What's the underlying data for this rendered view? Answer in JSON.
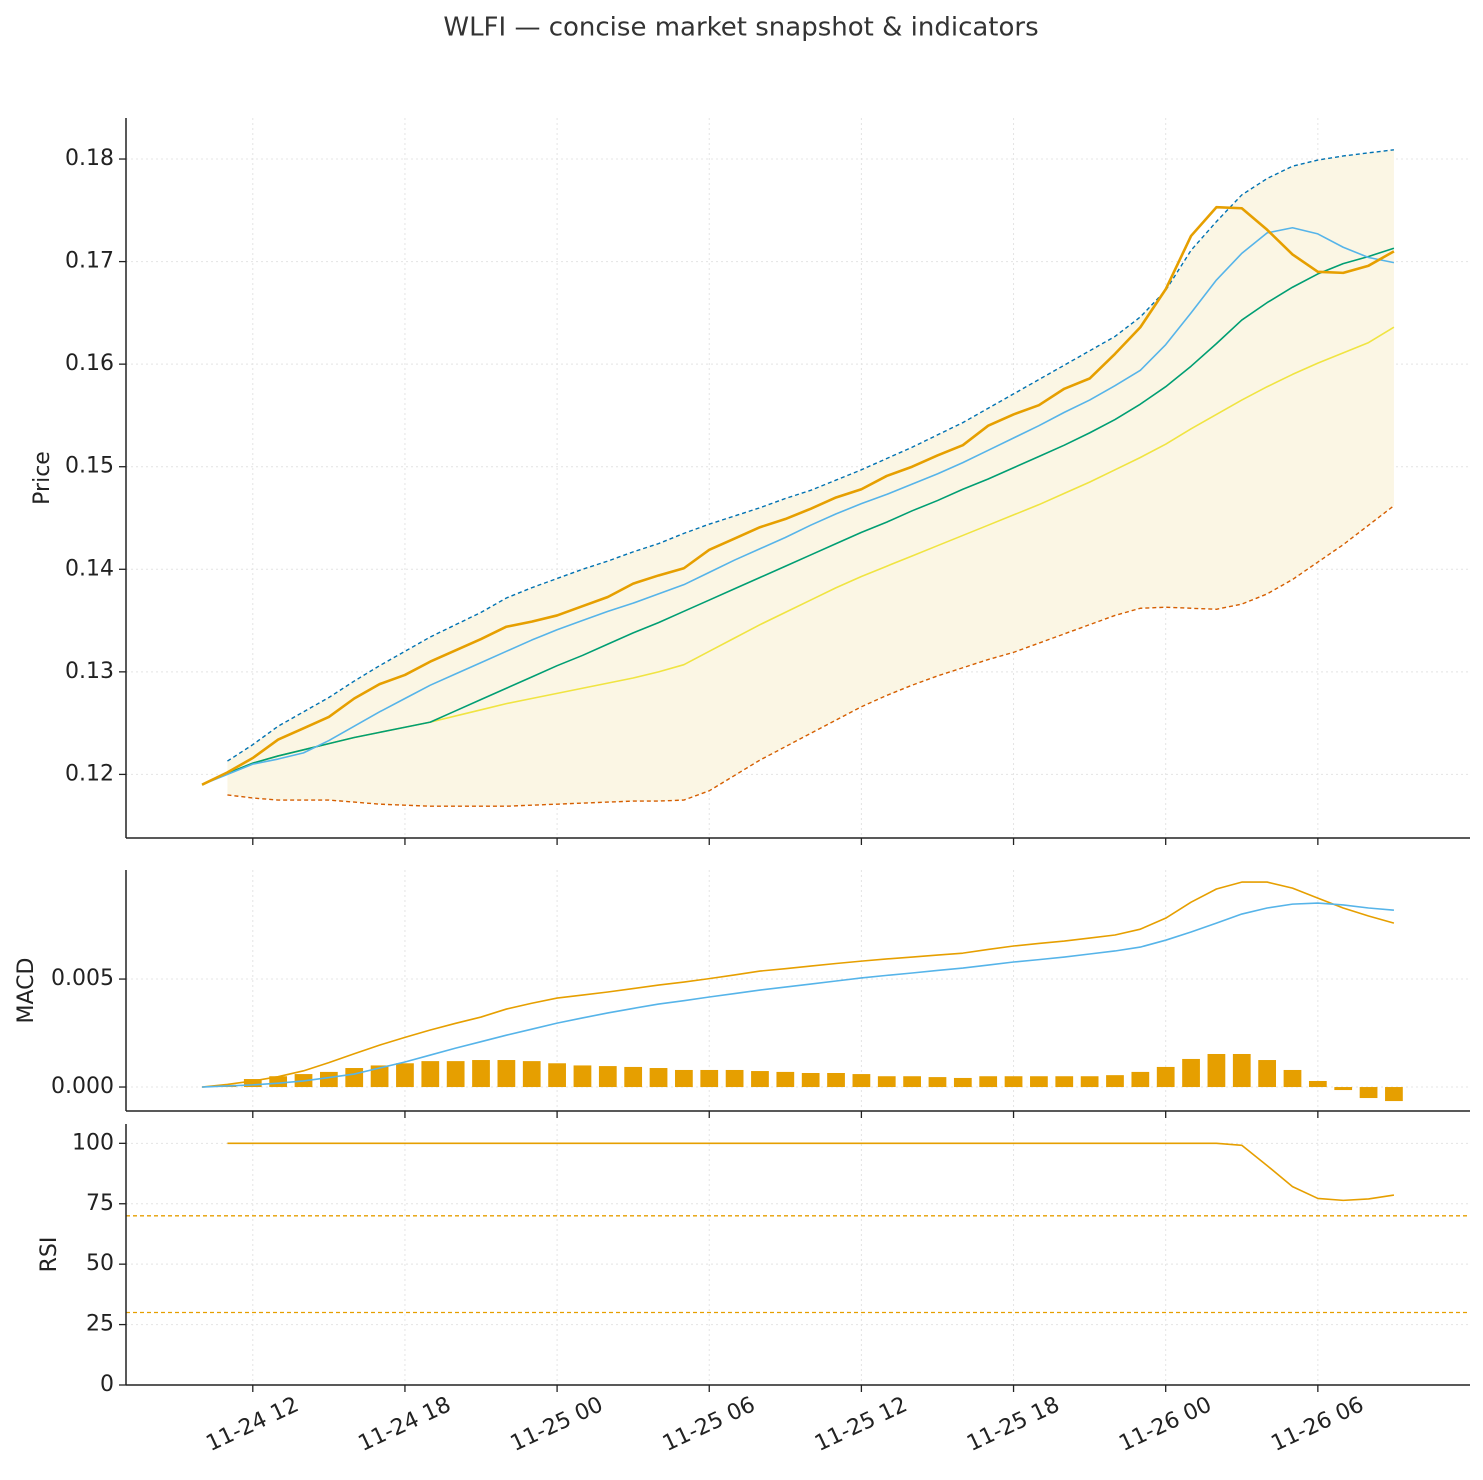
{
  "title": "WLFI — concise market snapshot & indicators",
  "chart_data": [
    {
      "type": "line",
      "ylabel": "Price",
      "x": [
        "11-24 10",
        "11-24 11",
        "11-24 12",
        "11-24 13",
        "11-24 14",
        "11-24 15",
        "11-24 16",
        "11-24 17",
        "11-24 18",
        "11-24 19",
        "11-24 20",
        "11-24 21",
        "11-24 22",
        "11-24 23",
        "11-25 00",
        "11-25 01",
        "11-25 02",
        "11-25 03",
        "11-25 04",
        "11-25 05",
        "11-25 06",
        "11-25 07",
        "11-25 08",
        "11-25 09",
        "11-25 10",
        "11-25 11",
        "11-25 12",
        "11-25 13",
        "11-25 14",
        "11-25 15",
        "11-25 16",
        "11-25 17",
        "11-25 18",
        "11-25 19",
        "11-25 20",
        "11-25 21",
        "11-25 22",
        "11-25 23",
        "11-26 00",
        "11-26 01",
        "11-26 02",
        "11-26 03",
        "11-26 04",
        "11-26 05",
        "11-26 06",
        "11-26 07",
        "11-26 08",
        "11-26 09"
      ],
      "xlim": [
        "11-24 07",
        "11-26 12"
      ],
      "ylim": [
        0.1138,
        0.184
      ],
      "yticks": [
        0.12,
        0.13,
        0.14,
        0.15,
        0.16,
        0.17,
        0.18
      ],
      "grid": true,
      "series": [
        {
          "color": "#fbf6e4",
          "fill": true,
          "values": [
            null,
            0.1213,
            0.1229,
            0.1247,
            0.1261,
            0.1275,
            0.1291,
            0.1306,
            0.132,
            0.1334,
            0.1346,
            0.1358,
            0.1372,
            0.1382,
            0.1391,
            0.14,
            0.1408,
            0.1417,
            0.1425,
            0.1435,
            0.1444,
            0.1452,
            0.146,
            0.1469,
            0.1477,
            0.1487,
            0.1497,
            0.1508,
            0.1519,
            0.1531,
            0.1543,
            0.1557,
            0.1571,
            0.1585,
            0.1599,
            0.1613,
            0.1627,
            0.1646,
            0.1672,
            0.1711,
            0.1739,
            0.1765,
            0.1781,
            0.1793,
            0.1799,
            0.1803,
            0.1806,
            0.1809
          ],
          "line_color": "#0072b2",
          "dash": true
        },
        {
          "color": "#d55e00",
          "dash": true,
          "values": [
            null,
            0.118,
            0.1177,
            0.1175,
            0.1175,
            0.1175,
            0.1173,
            0.1171,
            0.117,
            0.1169,
            0.1169,
            0.1169,
            0.1169,
            0.117,
            0.1171,
            0.1172,
            0.1173,
            0.1174,
            0.1174,
            0.1175,
            0.1184,
            0.1199,
            0.1214,
            0.1227,
            0.124,
            0.1253,
            0.1266,
            0.1277,
            0.1287,
            0.1296,
            0.1304,
            0.1312,
            0.1319,
            0.1328,
            0.1337,
            0.1346,
            0.1355,
            0.1362,
            0.1363,
            0.1362,
            0.1361,
            0.1366,
            0.1376,
            0.139,
            0.1407,
            0.1424,
            0.1443,
            0.1462
          ]
        },
        {
          "color": "#f0e442",
          "values": [
            0.119,
            0.1201,
            0.1211,
            0.1218,
            0.1224,
            0.123,
            0.1236,
            0.1241,
            0.1246,
            0.1251,
            0.1257,
            0.1263,
            0.1269,
            0.1274,
            0.1279,
            0.1284,
            0.1289,
            0.1294,
            0.13,
            0.1307,
            0.132,
            0.1333,
            0.1346,
            0.1358,
            0.137,
            0.1382,
            0.1393,
            0.1403,
            0.1413,
            0.1423,
            0.1433,
            0.1443,
            0.1453,
            0.1463,
            0.1474,
            0.1485,
            0.1497,
            0.1509,
            0.1522,
            0.1537,
            0.1551,
            0.1565,
            0.1578,
            0.159,
            0.1601,
            0.1611,
            0.1621,
            0.1636
          ]
        },
        {
          "color": "#009e73",
          "values": [
            0.119,
            0.1201,
            0.1211,
            0.1218,
            0.1224,
            0.123,
            0.1236,
            0.1241,
            0.1246,
            0.1251,
            0.1262,
            0.1273,
            0.1284,
            0.1295,
            0.1306,
            0.1316,
            0.1327,
            0.1338,
            0.1348,
            0.1359,
            0.137,
            0.1381,
            0.1392,
            0.1403,
            0.1414,
            0.1425,
            0.1436,
            0.1446,
            0.1457,
            0.1467,
            0.1478,
            0.1488,
            0.1499,
            0.151,
            0.1521,
            0.1533,
            0.1546,
            0.1561,
            0.1578,
            0.1598,
            0.162,
            0.1643,
            0.166,
            0.1675,
            0.1688,
            0.1698,
            0.1705,
            0.1713
          ]
        },
        {
          "color": "#56b4e9",
          "values": [
            0.119,
            0.12,
            0.121,
            0.1215,
            0.1221,
            0.1233,
            0.1247,
            0.1261,
            0.1274,
            0.1287,
            0.1298,
            0.1309,
            0.132,
            0.1331,
            0.1341,
            0.135,
            0.1359,
            0.1367,
            0.1376,
            0.1385,
            0.1397,
            0.1409,
            0.142,
            0.1431,
            0.1443,
            0.1454,
            0.1464,
            0.1473,
            0.1483,
            0.1493,
            0.1504,
            0.1516,
            0.1528,
            0.154,
            0.1553,
            0.1565,
            0.1579,
            0.1594,
            0.1619,
            0.165,
            0.1682,
            0.1708,
            0.1728,
            0.1733,
            0.1727,
            0.1714,
            0.1704,
            0.1699
          ]
        },
        {
          "color": "#e69f00",
          "width": 2.6,
          "values": [
            0.119,
            0.1202,
            0.1216,
            0.1234,
            0.1245,
            0.1256,
            0.1274,
            0.1288,
            0.1297,
            0.131,
            0.1321,
            0.1332,
            0.1344,
            0.1349,
            0.1355,
            0.1364,
            0.1373,
            0.1386,
            0.1394,
            0.1401,
            0.1419,
            0.143,
            0.1441,
            0.1449,
            0.1459,
            0.147,
            0.1478,
            0.1491,
            0.15,
            0.1511,
            0.1521,
            0.154,
            0.1551,
            0.156,
            0.1576,
            0.1586,
            0.161,
            0.1636,
            0.1673,
            0.1725,
            0.1753,
            0.1752,
            0.1731,
            0.1707,
            0.169,
            0.1689,
            0.1696,
            0.171
          ]
        }
      ]
    },
    {
      "type": "line",
      "ylabel": "MACD",
      "x": [
        "11-24 10",
        "11-24 11",
        "11-24 12",
        "11-24 13",
        "11-24 14",
        "11-24 15",
        "11-24 16",
        "11-24 17",
        "11-24 18",
        "11-24 19",
        "11-24 20",
        "11-24 21",
        "11-24 22",
        "11-24 23",
        "11-25 00",
        "11-25 01",
        "11-25 02",
        "11-25 03",
        "11-25 04",
        "11-25 05",
        "11-25 06",
        "11-25 07",
        "11-25 08",
        "11-25 09",
        "11-25 10",
        "11-25 11",
        "11-25 12",
        "11-25 13",
        "11-25 14",
        "11-25 15",
        "11-25 16",
        "11-25 17",
        "11-25 18",
        "11-25 19",
        "11-25 20",
        "11-25 21",
        "11-25 22",
        "11-25 23",
        "11-26 00",
        "11-26 01",
        "11-26 02",
        "11-26 03",
        "11-26 04",
        "11-26 05",
        "11-26 06",
        "11-26 07",
        "11-26 08",
        "11-26 09"
      ],
      "xlim": [
        "11-24 07",
        "11-26 12"
      ],
      "ylim": [
        -0.00111,
        0.01005
      ],
      "yticks": [
        {
          "value": 0,
          "label": "0.000"
        },
        {
          "value": 0.005,
          "label": "0.005"
        }
      ],
      "grid": true,
      "series": [
        {
          "type": "bar",
          "color": "#e69f00",
          "values": [
            0,
            0.0001,
            0.00037,
            0.0005,
            0.0006,
            0.0007,
            0.00088,
            0.001,
            0.0011,
            0.0012,
            0.0012,
            0.00125,
            0.00125,
            0.0012,
            0.0011,
            0.001,
            0.00097,
            0.00093,
            0.00088,
            0.00079,
            0.00079,
            0.00079,
            0.00074,
            0.0007,
            0.00065,
            0.00065,
            0.0006,
            0.0005,
            0.0005,
            0.00046,
            0.00042,
            0.0005,
            0.0005,
            0.0005,
            0.0005,
            0.0005,
            0.00055,
            0.0007,
            0.00093,
            0.0013,
            0.00153,
            0.00153,
            0.00125,
            0.00079,
            0.00028,
            -0.00014,
            -0.00051,
            -0.00065
          ]
        },
        {
          "color": "#e69f00",
          "values": [
            0,
            0.00012,
            0.00028,
            0.00048,
            0.00075,
            0.00113,
            0.00154,
            0.00194,
            0.0023,
            0.00264,
            0.00295,
            0.00324,
            0.00361,
            0.00388,
            0.00412,
            0.00426,
            0.0044,
            0.00456,
            0.00472,
            0.00486,
            0.00502,
            0.00519,
            0.00537,
            0.00548,
            0.0056,
            0.00572,
            0.00583,
            0.00593,
            0.00602,
            0.00611,
            0.0062,
            0.00637,
            0.00653,
            0.00665,
            0.00676,
            0.0069,
            0.00704,
            0.00731,
            0.00782,
            0.00856,
            0.00917,
            0.00949,
            0.00949,
            0.00921,
            0.00875,
            0.00829,
            0.00792,
            0.00759
          ]
        },
        {
          "color": "#56b4e9",
          "values": [
            0,
            5e-05,
            0.0001,
            0.00018,
            0.00028,
            0.00044,
            0.0006,
            0.00088,
            0.00116,
            0.00148,
            0.0018,
            0.0021,
            0.0024,
            0.00268,
            0.00296,
            0.0032,
            0.00343,
            0.00364,
            0.00384,
            0.004,
            0.00417,
            0.00433,
            0.00449,
            0.00463,
            0.00477,
            0.00491,
            0.00505,
            0.00517,
            0.00528,
            0.0054,
            0.00551,
            0.00565,
            0.00579,
            0.0059,
            0.00602,
            0.00616,
            0.0063,
            0.00648,
            0.0068,
            0.00718,
            0.00759,
            0.00801,
            0.00829,
            0.00847,
            0.00852,
            0.00843,
            0.00829,
            0.00819
          ]
        }
      ]
    },
    {
      "type": "line",
      "ylabel": "RSI",
      "x": [
        "11-24 10",
        "11-24 11",
        "11-24 12",
        "11-24 13",
        "11-24 14",
        "11-24 15",
        "11-24 16",
        "11-24 17",
        "11-24 18",
        "11-24 19",
        "11-24 20",
        "11-24 21",
        "11-24 22",
        "11-24 23",
        "11-25 00",
        "11-25 01",
        "11-25 02",
        "11-25 03",
        "11-25 04",
        "11-25 05",
        "11-25 06",
        "11-25 07",
        "11-25 08",
        "11-25 09",
        "11-25 10",
        "11-25 11",
        "11-25 12",
        "11-25 13",
        "11-25 14",
        "11-25 15",
        "11-25 16",
        "11-25 17",
        "11-25 18",
        "11-25 19",
        "11-25 20",
        "11-25 21",
        "11-25 22",
        "11-25 23",
        "11-26 00",
        "11-26 01",
        "11-26 02",
        "11-26 03",
        "11-26 04",
        "11-26 05",
        "11-26 06",
        "11-26 07",
        "11-26 08",
        "11-26 09"
      ],
      "xlim": [
        "11-24 07",
        "11-26 12"
      ],
      "xticks": [
        "11-24 12",
        "11-24 18",
        "11-25 00",
        "11-25 06",
        "11-25 12",
        "11-25 18",
        "11-26 00",
        "11-26 06"
      ],
      "ylim": [
        0,
        108
      ],
      "yticks": [
        0,
        25,
        50,
        75,
        100
      ],
      "grid": true,
      "hlines": [
        {
          "value": 70,
          "color": "#e69f00"
        },
        {
          "value": 30,
          "color": "#e69f00"
        }
      ],
      "series": [
        {
          "color": "#e69f00",
          "values": [
            null,
            100,
            100,
            100,
            100,
            100,
            100,
            100,
            100,
            100,
            100,
            100,
            100,
            100,
            100,
            100,
            100,
            100,
            100,
            100,
            100,
            100,
            100,
            100,
            100,
            100,
            100,
            100,
            100,
            100,
            100,
            100,
            100,
            100,
            100,
            100,
            100,
            100,
            100,
            100,
            100,
            99.2,
            90.8,
            82.1,
            77.2,
            76.4,
            77.0,
            78.6
          ]
        }
      ]
    }
  ]
}
